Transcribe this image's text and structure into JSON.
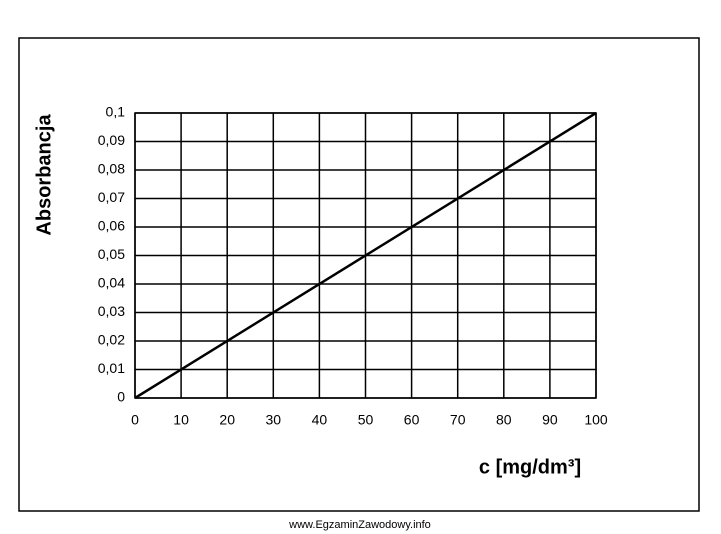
{
  "chart_data": {
    "type": "line",
    "x_label": "c [mg/dm³]",
    "y_label": "Absorbancja",
    "x": [
      0,
      100
    ],
    "values": [
      0,
      0.1
    ],
    "color": "#000000",
    "xlim": [
      0,
      100
    ],
    "xticks": [
      0,
      10,
      20,
      30,
      40,
      50,
      60,
      70,
      80,
      90,
      100
    ],
    "ylim": [
      0,
      0.1
    ],
    "yticks": [
      0,
      {
        "value": 0.01,
        "label": "0,01"
      },
      {
        "value": 0.02,
        "label": "0,02"
      },
      {
        "value": 0.03,
        "label": "0,03"
      },
      {
        "value": 0.04,
        "label": "0,04"
      },
      {
        "value": 0.05,
        "label": "0,05"
      },
      {
        "value": 0.06,
        "label": "0,06"
      },
      {
        "value": 0.07,
        "label": "0,07"
      },
      {
        "value": 0.08,
        "label": "0,08"
      },
      {
        "value": 0.09,
        "label": "0,09"
      },
      {
        "value": 0.1,
        "label": "0,1"
      }
    ],
    "grid": true
  },
  "footer": "www.EgzaminZawodowy.info"
}
